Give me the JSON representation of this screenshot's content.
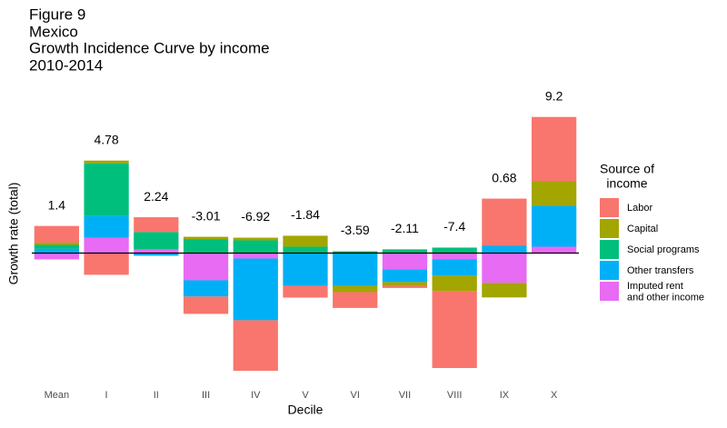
{
  "chart_data": {
    "type": "stacked-bar",
    "title": [
      "Figure 9",
      "Mexico",
      "Growth Incidence Curve by income",
      "2010-2014"
    ],
    "x_label": "Decile",
    "y_label": "Growth rate (total)",
    "legend_title": [
      "Source of",
      "income"
    ],
    "categories": [
      "Mean",
      "I",
      "II",
      "III",
      "IV",
      "V",
      "VI",
      "VII",
      "VIII",
      "IX",
      "X"
    ],
    "totals": [
      1.4,
      4.78,
      2.24,
      -3.01,
      -6.92,
      -1.84,
      -3.59,
      -2.11,
      -7.4,
      0.68,
      9.2
    ],
    "series": [
      {
        "name": "Labor",
        "color": "#F8766D",
        "values": [
          1.13,
          -1.47,
          1.0,
          -1.17,
          -3.42,
          -0.8,
          -1.07,
          -0.15,
          -5.2,
          3.19,
          4.35
        ]
      },
      {
        "name": "Capital",
        "color": "#A3A500",
        "values": [
          0.15,
          0.18,
          0,
          0.18,
          0.18,
          0.74,
          -0.43,
          -0.25,
          -1.04,
          -0.98,
          1.66
        ]
      },
      {
        "name": "Social programs",
        "color": "#00BF7D",
        "values": [
          0.25,
          3.56,
          1.17,
          0.92,
          0.86,
          0.43,
          0.12,
          0.25,
          0.37,
          0,
          0
        ]
      },
      {
        "name": "Other transfers",
        "color": "#00B0F6",
        "values": [
          0.3,
          1.47,
          -0.18,
          -1.1,
          -4.17,
          -2.21,
          -2.21,
          -0.86,
          -1.1,
          0.49,
          2.76
        ]
      },
      {
        "name": "Imputed rent\nand other income",
        "color": "#E76BF3",
        "values": [
          -0.43,
          1.04,
          0.25,
          -1.84,
          -0.37,
          0,
          0,
          -1.1,
          -0.43,
          -2.02,
          0.43
        ]
      }
    ],
    "ylim": [
      -9,
      11.7
    ],
    "hline": 0
  }
}
